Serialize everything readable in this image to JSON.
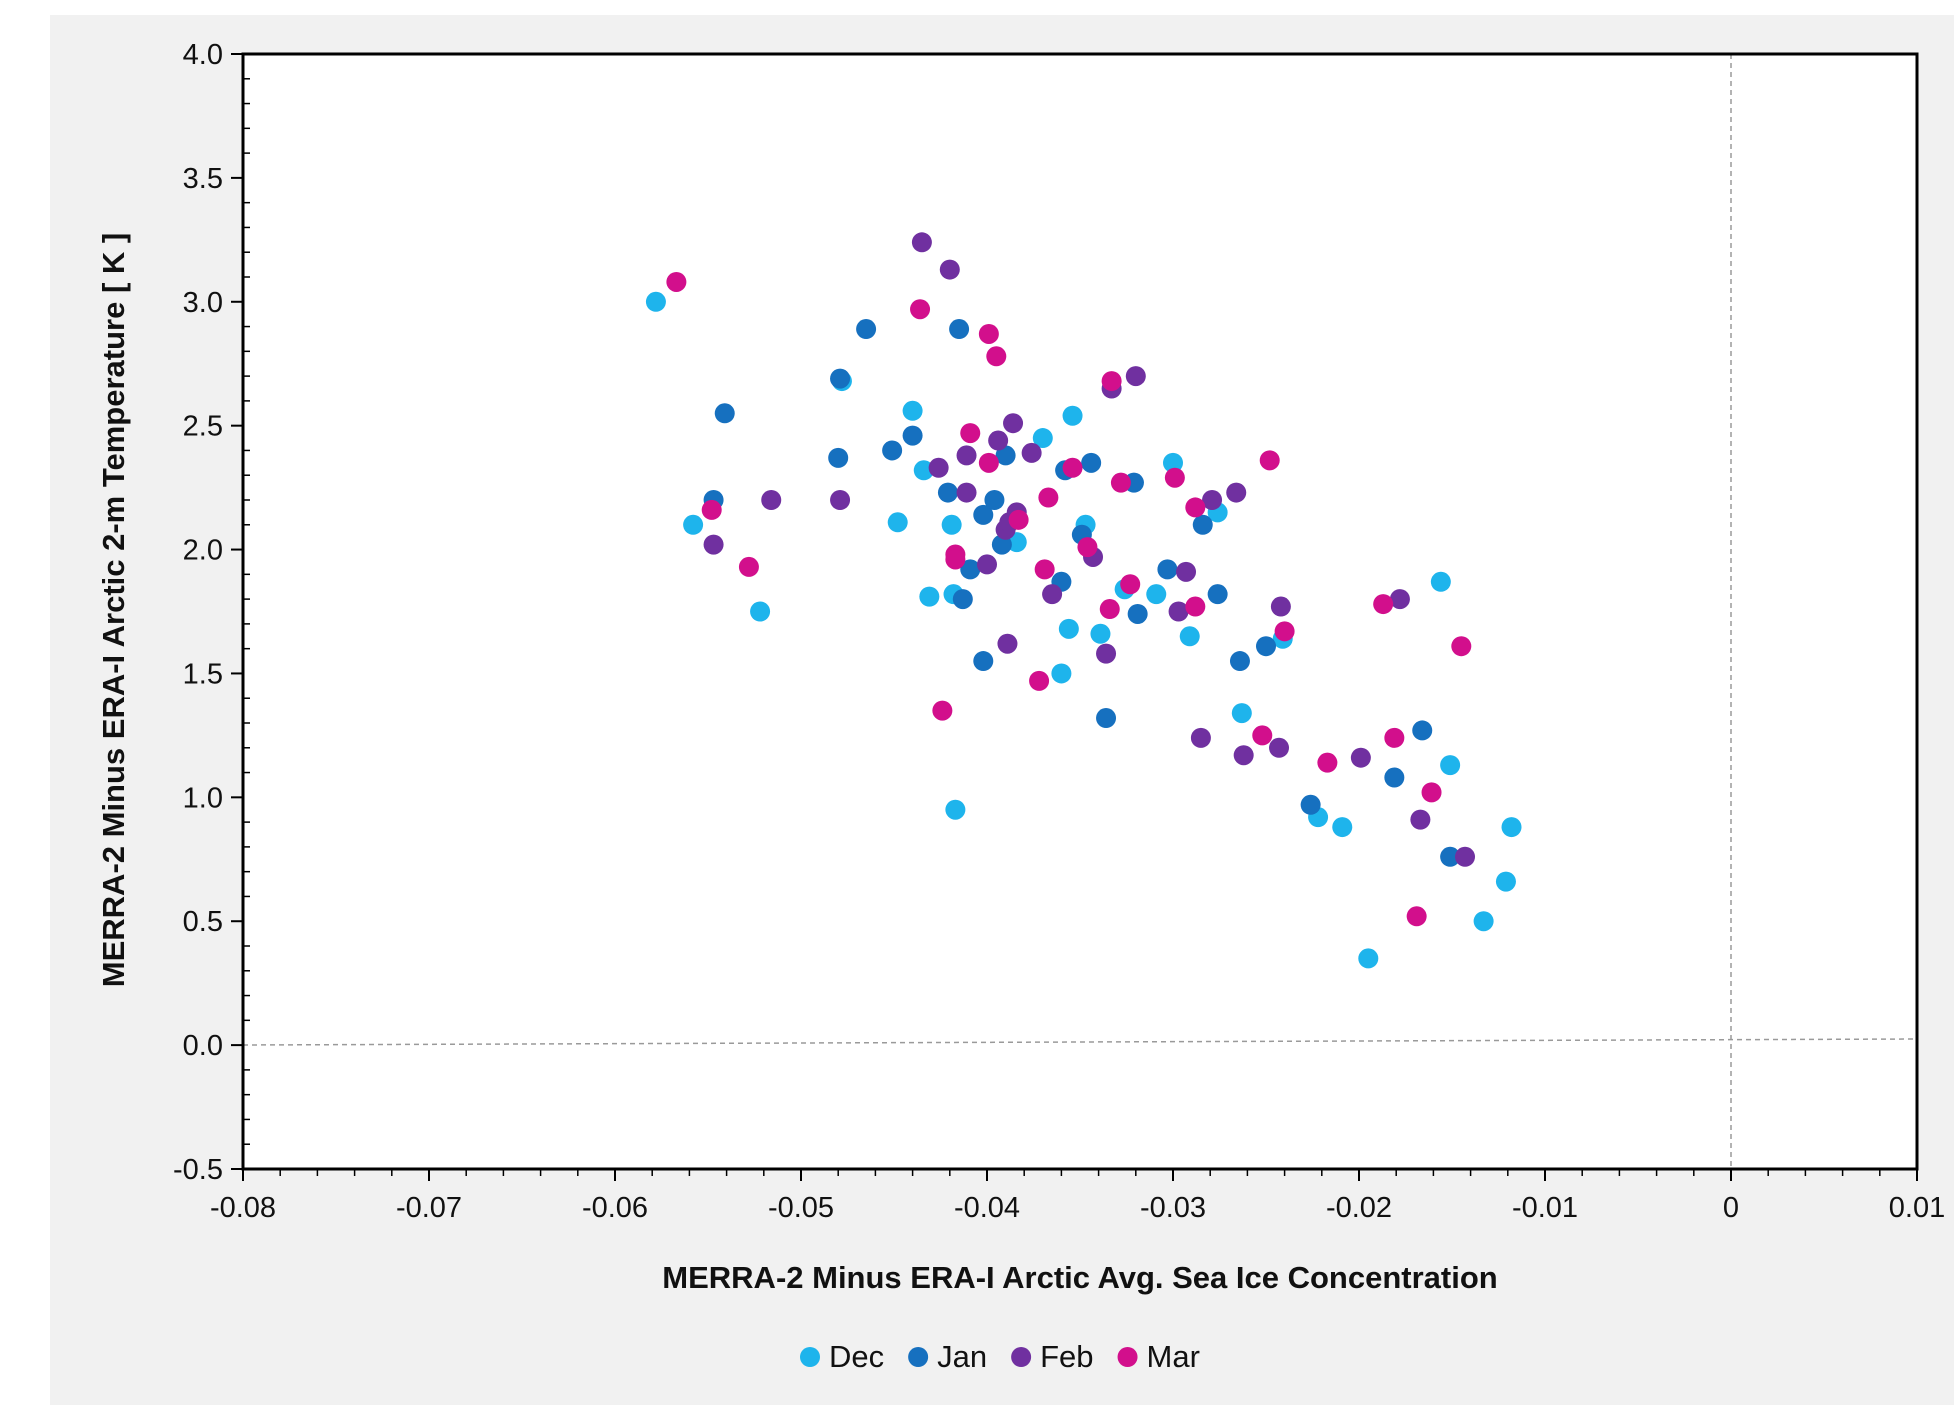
{
  "chart_data": {
    "type": "scatter",
    "title": "",
    "xlabel": "MERRA-2 Minus ERA-I Arctic Avg. Sea Ice Concentration",
    "ylabel": "MERRA-2 Minus ERA-I Arctic 2-m Temperature [ K ]",
    "xlim": [
      -0.08,
      0.01
    ],
    "ylim": [
      -0.5,
      4.0
    ],
    "x_ticks": [
      -0.08,
      -0.07,
      -0.06,
      -0.05,
      -0.04,
      -0.03,
      -0.02,
      -0.01,
      0,
      0.01
    ],
    "x_tick_labels": [
      "-0.08",
      "-0.07",
      "-0.06",
      "-0.05",
      "-0.04",
      "-0.03",
      "-0.02",
      "-0.01",
      "0",
      "0.01"
    ],
    "y_ticks": [
      -0.5,
      0.0,
      0.5,
      1.0,
      1.5,
      2.0,
      2.5,
      3.0,
      3.5,
      4.0
    ],
    "y_tick_labels": [
      "-0.5",
      "0.0",
      "0.5",
      "1.0",
      "1.5",
      "2.0",
      "2.5",
      "3.0",
      "3.5",
      "4.0"
    ],
    "grid": false,
    "reference_lines": [
      "x = 0 (dashed)",
      "y = 0 (dashed)"
    ],
    "legend_position": "bottom-center",
    "series": [
      {
        "name": "Dec",
        "color": "#1eb4ec",
        "points": [
          [
            -0.0578,
            3.0
          ],
          [
            -0.0558,
            2.1
          ],
          [
            -0.0522,
            1.75
          ],
          [
            -0.0478,
            2.68
          ],
          [
            -0.0448,
            2.11
          ],
          [
            -0.044,
            2.56
          ],
          [
            -0.0434,
            2.32
          ],
          [
            -0.0431,
            1.81
          ],
          [
            -0.0419,
            2.1
          ],
          [
            -0.0418,
            1.82
          ],
          [
            -0.0417,
            0.95
          ],
          [
            -0.0384,
            2.03
          ],
          [
            -0.037,
            2.45
          ],
          [
            -0.036,
            1.5
          ],
          [
            -0.0356,
            1.68
          ],
          [
            -0.0354,
            2.54
          ],
          [
            -0.0347,
            2.1
          ],
          [
            -0.0339,
            1.66
          ],
          [
            -0.0326,
            1.84
          ],
          [
            -0.0309,
            1.82
          ],
          [
            -0.03,
            2.35
          ],
          [
            -0.0291,
            1.65
          ],
          [
            -0.0276,
            2.15
          ],
          [
            -0.0263,
            1.34
          ],
          [
            -0.0241,
            1.64
          ],
          [
            -0.0222,
            0.92
          ],
          [
            -0.0209,
            0.88
          ],
          [
            -0.0195,
            0.35
          ],
          [
            -0.0156,
            1.87
          ],
          [
            -0.0151,
            1.13
          ],
          [
            -0.0133,
            0.5
          ],
          [
            -0.0121,
            0.66
          ],
          [
            -0.0118,
            0.88
          ]
        ]
      },
      {
        "name": "Jan",
        "color": "#1670bf",
        "points": [
          [
            -0.0547,
            2.2
          ],
          [
            -0.0541,
            2.55
          ],
          [
            -0.048,
            2.37
          ],
          [
            -0.0479,
            2.69
          ],
          [
            -0.0465,
            2.89
          ],
          [
            -0.0451,
            2.4
          ],
          [
            -0.044,
            2.46
          ],
          [
            -0.0421,
            2.23
          ],
          [
            -0.0415,
            2.89
          ],
          [
            -0.0413,
            1.8
          ],
          [
            -0.0409,
            1.92
          ],
          [
            -0.0402,
            2.14
          ],
          [
            -0.0402,
            1.55
          ],
          [
            -0.0396,
            2.2
          ],
          [
            -0.0392,
            2.02
          ],
          [
            -0.039,
            2.38
          ],
          [
            -0.036,
            1.87
          ],
          [
            -0.0358,
            2.32
          ],
          [
            -0.0349,
            2.06
          ],
          [
            -0.0344,
            2.35
          ],
          [
            -0.0336,
            1.32
          ],
          [
            -0.0321,
            2.27
          ],
          [
            -0.0319,
            1.74
          ],
          [
            -0.0303,
            1.92
          ],
          [
            -0.0284,
            2.1
          ],
          [
            -0.0276,
            1.82
          ],
          [
            -0.0264,
            1.55
          ],
          [
            -0.025,
            1.61
          ],
          [
            -0.0226,
            0.97
          ],
          [
            -0.0181,
            1.08
          ],
          [
            -0.0166,
            1.27
          ],
          [
            -0.0151,
            0.76
          ]
        ]
      },
      {
        "name": "Feb",
        "color": "#7030a0",
        "points": [
          [
            -0.0547,
            2.02
          ],
          [
            -0.0516,
            2.2
          ],
          [
            -0.0479,
            2.2
          ],
          [
            -0.0435,
            3.24
          ],
          [
            -0.0426,
            2.33
          ],
          [
            -0.042,
            3.13
          ],
          [
            -0.0411,
            2.23
          ],
          [
            -0.0411,
            2.38
          ],
          [
            -0.04,
            1.94
          ],
          [
            -0.0394,
            2.44
          ],
          [
            -0.039,
            2.08
          ],
          [
            -0.0389,
            1.62
          ],
          [
            -0.0388,
            2.11
          ],
          [
            -0.0386,
            2.51
          ],
          [
            -0.0384,
            2.15
          ],
          [
            -0.0376,
            2.39
          ],
          [
            -0.0365,
            1.82
          ],
          [
            -0.0343,
            1.97
          ],
          [
            -0.0336,
            1.58
          ],
          [
            -0.0333,
            2.65
          ],
          [
            -0.032,
            2.7
          ],
          [
            -0.0297,
            1.75
          ],
          [
            -0.0293,
            1.91
          ],
          [
            -0.0285,
            1.24
          ],
          [
            -0.0279,
            2.2
          ],
          [
            -0.0266,
            2.23
          ],
          [
            -0.0262,
            1.17
          ],
          [
            -0.0243,
            1.2
          ],
          [
            -0.0242,
            1.77
          ],
          [
            -0.0199,
            1.16
          ],
          [
            -0.0178,
            1.8
          ],
          [
            -0.0167,
            0.91
          ],
          [
            -0.0143,
            0.76
          ]
        ]
      },
      {
        "name": "Mar",
        "color": "#d20f8c",
        "points": [
          [
            -0.0567,
            3.08
          ],
          [
            -0.0548,
            2.16
          ],
          [
            -0.0528,
            1.93
          ],
          [
            -0.0436,
            2.97
          ],
          [
            -0.0424,
            1.35
          ],
          [
            -0.0417,
            1.98
          ],
          [
            -0.0417,
            1.96
          ],
          [
            -0.0409,
            2.47
          ],
          [
            -0.0399,
            2.87
          ],
          [
            -0.0399,
            2.35
          ],
          [
            -0.0395,
            2.78
          ],
          [
            -0.0383,
            2.12
          ],
          [
            -0.0372,
            1.47
          ],
          [
            -0.0369,
            1.92
          ],
          [
            -0.0367,
            2.21
          ],
          [
            -0.0354,
            2.33
          ],
          [
            -0.0346,
            2.01
          ],
          [
            -0.0334,
            1.76
          ],
          [
            -0.0333,
            2.68
          ],
          [
            -0.0328,
            2.27
          ],
          [
            -0.0323,
            1.86
          ],
          [
            -0.0299,
            2.29
          ],
          [
            -0.0288,
            2.17
          ],
          [
            -0.0288,
            1.77
          ],
          [
            -0.0252,
            1.25
          ],
          [
            -0.0248,
            2.36
          ],
          [
            -0.024,
            1.67
          ],
          [
            -0.0217,
            1.14
          ],
          [
            -0.0187,
            1.78
          ],
          [
            -0.0181,
            1.24
          ],
          [
            -0.0169,
            0.52
          ],
          [
            -0.0161,
            1.02
          ],
          [
            -0.0145,
            1.61
          ]
        ]
      }
    ]
  }
}
